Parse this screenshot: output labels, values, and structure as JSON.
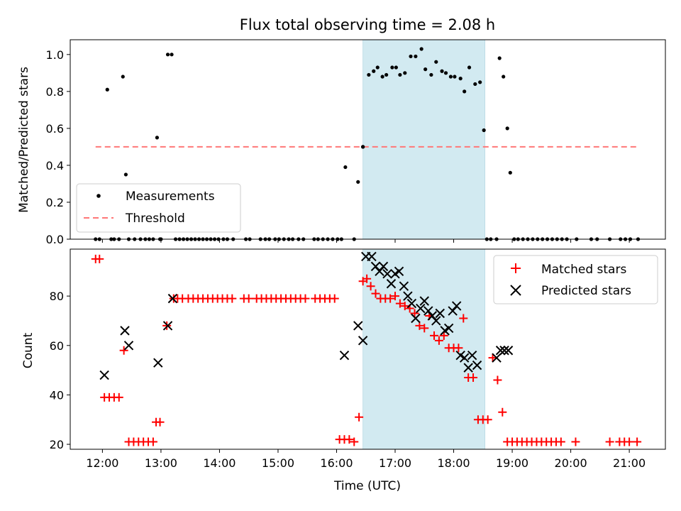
{
  "chart_data": [
    {
      "type": "scatter",
      "title": "Flux total observing time = 2.08 h",
      "ylabel": "Matched/Predicted stars",
      "xlim": [
        "11:27",
        "21:37"
      ],
      "ylim": [
        0,
        1.08
      ],
      "yticks": [
        "0.0",
        "0.2",
        "0.4",
        "0.6",
        "0.8",
        "1.0"
      ],
      "xticks_labels_shown": false,
      "grid": false,
      "legend": {
        "position": "lower-left",
        "entries": [
          "Measurements",
          "Threshold"
        ]
      },
      "threshold": {
        "name": "Threshold",
        "value": 0.5,
        "x_range": [
          "11:53",
          "21:09"
        ],
        "color": "#ff7777",
        "style": "dashed"
      },
      "highlight_band": {
        "x_range": [
          "16:27",
          "18:32"
        ],
        "color": "#add8e6"
      },
      "series": [
        {
          "name": "Measurements",
          "marker": "point",
          "color": "#000000",
          "x": [
            "11:53",
            "11:57",
            "12:05",
            "12:09",
            "12:12",
            "12:17",
            "12:21",
            "12:24",
            "12:27",
            "12:33",
            "12:39",
            "12:44",
            "12:48",
            "12:52",
            "12:56",
            "12:59",
            "13:00",
            "13:07",
            "13:11",
            "13:15",
            "13:19",
            "13:23",
            "13:27",
            "13:31",
            "13:35",
            "13:39",
            "13:43",
            "13:47",
            "13:51",
            "13:55",
            "13:59",
            "14:04",
            "14:08",
            "14:14",
            "14:27",
            "14:31",
            "14:42",
            "14:47",
            "14:51",
            "14:57",
            "15:01",
            "15:06",
            "15:11",
            "15:15",
            "15:21",
            "15:26",
            "15:37",
            "15:41",
            "15:46",
            "15:51",
            "15:56",
            "16:01",
            "16:05",
            "16:09",
            "16:18",
            "16:22",
            "16:27",
            "16:27",
            "16:33",
            "16:38",
            "16:42",
            "16:47",
            "16:51",
            "16:57",
            "17:01",
            "17:05",
            "17:10",
            "17:16",
            "17:21",
            "17:27",
            "17:31",
            "17:37",
            "17:42",
            "17:48",
            "17:52",
            "17:57",
            "18:01",
            "18:07",
            "18:11",
            "18:16",
            "18:22",
            "18:27",
            "18:31",
            "18:34",
            "18:38",
            "18:44",
            "18:47",
            "18:51",
            "18:55",
            "18:58",
            "19:02",
            "19:06",
            "19:11",
            "19:16",
            "19:21",
            "19:26",
            "19:31",
            "19:36",
            "19:41",
            "19:46",
            "19:51",
            "19:56",
            "20:06",
            "20:21",
            "20:27",
            "20:40",
            "20:51",
            "20:56",
            "21:01",
            "21:09"
          ],
          "y": [
            0,
            0,
            0.81,
            0,
            0,
            0,
            0.88,
            0.35,
            0,
            0,
            0,
            0,
            0,
            0,
            0.55,
            0,
            0,
            1.0,
            1.0,
            0,
            0,
            0,
            0,
            0,
            0,
            0,
            0,
            0,
            0,
            0,
            0,
            0,
            0,
            0,
            0,
            0,
            0,
            0,
            0,
            0,
            0,
            0,
            0,
            0,
            0,
            0,
            0,
            0,
            0,
            0,
            0,
            0,
            0,
            0.39,
            0,
            0.31,
            0.5,
            0.5,
            0.89,
            0.91,
            0.93,
            0.88,
            0.89,
            0.93,
            0.93,
            0.89,
            0.9,
            0.99,
            0.99,
            1.03,
            0.92,
            0.89,
            0.96,
            0.91,
            0.9,
            0.88,
            0.88,
            0.87,
            0.8,
            0.93,
            0.84,
            0.85,
            0.59,
            0,
            0,
            0,
            0.98,
            0.88,
            0.6,
            0.36,
            0,
            0,
            0,
            0,
            0,
            0,
            0,
            0,
            0,
            0,
            0,
            0,
            0,
            0,
            0,
            0,
            0,
            0,
            0,
            0
          ]
        }
      ]
    },
    {
      "type": "scatter",
      "xlabel": "Time (UTC)",
      "ylabel": "Count",
      "xlim": [
        "11:27",
        "21:37"
      ],
      "ylim": [
        18,
        99
      ],
      "yticks": [
        "20",
        "40",
        "60",
        "80"
      ],
      "xticks": [
        "12:00",
        "13:00",
        "14:00",
        "15:00",
        "16:00",
        "17:00",
        "18:00",
        "19:00",
        "20:00",
        "21:00"
      ],
      "grid": false,
      "legend": {
        "position": "top-right",
        "entries": [
          "Matched stars",
          "Predicted stars"
        ]
      },
      "highlight_band": {
        "x_range": [
          "16:27",
          "18:32"
        ],
        "color": "#add8e6"
      },
      "series": [
        {
          "name": "Matched stars",
          "marker": "plus",
          "color": "#ff0000",
          "x": [
            "11:53",
            "11:57",
            "12:02",
            "12:07",
            "12:12",
            "12:17",
            "12:22",
            "12:27",
            "12:32",
            "12:37",
            "12:42",
            "12:47",
            "12:52",
            "12:55",
            "12:59",
            "13:06",
            "13:13",
            "13:17",
            "13:22",
            "13:28",
            "13:33",
            "13:38",
            "13:43",
            "13:48",
            "13:53",
            "13:58",
            "14:03",
            "14:08",
            "14:13",
            "14:25",
            "14:30",
            "14:38",
            "14:43",
            "14:48",
            "14:53",
            "14:58",
            "15:03",
            "15:08",
            "15:13",
            "15:18",
            "15:23",
            "15:28",
            "15:38",
            "15:43",
            "15:48",
            "15:53",
            "15:58",
            "16:03",
            "16:08",
            "16:13",
            "16:18",
            "16:23",
            "16:27",
            "16:31",
            "16:35",
            "16:40",
            "16:45",
            "16:50",
            "16:55",
            "17:00",
            "17:05",
            "17:10",
            "17:15",
            "17:20",
            "17:25",
            "17:30",
            "17:35",
            "17:40",
            "17:45",
            "17:50",
            "17:55",
            "18:00",
            "18:05",
            "18:10",
            "18:15",
            "18:20",
            "18:25",
            "18:30",
            "18:35",
            "18:40",
            "18:45",
            "18:50",
            "18:55",
            "19:00",
            "19:05",
            "19:10",
            "19:15",
            "19:20",
            "19:25",
            "19:30",
            "19:35",
            "19:40",
            "19:45",
            "19:50",
            "20:05",
            "20:40",
            "20:50",
            "20:55",
            "21:00",
            "21:08"
          ],
          "y": [
            95,
            95,
            39,
            39,
            39,
            39,
            58,
            21,
            21,
            21,
            21,
            21,
            21,
            29,
            29,
            68,
            79,
            79,
            79,
            79,
            79,
            79,
            79,
            79,
            79,
            79,
            79,
            79,
            79,
            79,
            79,
            79,
            79,
            79,
            79,
            79,
            79,
            79,
            79,
            79,
            79,
            79,
            79,
            79,
            79,
            79,
            79,
            22,
            22,
            22,
            21,
            31,
            86,
            87,
            84,
            81,
            79,
            79,
            79,
            80,
            77,
            76,
            75,
            73,
            68,
            67,
            72,
            64,
            62,
            64,
            59,
            59,
            59,
            71,
            47,
            47,
            30,
            30,
            30,
            55,
            46,
            33,
            21,
            21,
            21,
            21,
            21,
            21,
            21,
            21,
            21,
            21,
            21,
            21,
            21,
            21,
            21,
            21,
            21,
            21
          ]
        },
        {
          "name": "Predicted stars",
          "marker": "x",
          "color": "#000000",
          "x": [
            "12:02",
            "12:23",
            "12:27",
            "12:57",
            "13:07",
            "13:12",
            "16:08",
            "16:22",
            "16:27",
            "16:30",
            "16:36",
            "16:40",
            "16:44",
            "16:48",
            "16:52",
            "16:56",
            "17:00",
            "17:04",
            "17:09",
            "17:13",
            "17:17",
            "17:21",
            "17:26",
            "17:30",
            "17:34",
            "17:38",
            "17:42",
            "17:46",
            "17:51",
            "17:55",
            "17:59",
            "18:03",
            "18:07",
            "18:11",
            "18:15",
            "18:19",
            "18:24",
            "18:44",
            "18:48",
            "18:52",
            "18:56"
          ],
          "y": [
            48,
            66,
            60,
            53,
            68,
            79,
            56,
            68,
            62,
            96,
            96,
            92,
            90,
            92,
            89,
            85,
            89,
            90,
            84,
            80,
            77,
            71,
            75,
            78,
            74,
            72,
            70,
            73,
            66,
            67,
            74,
            76,
            56,
            55,
            51,
            56,
            52,
            55,
            58,
            58,
            58
          ]
        }
      ]
    }
  ]
}
